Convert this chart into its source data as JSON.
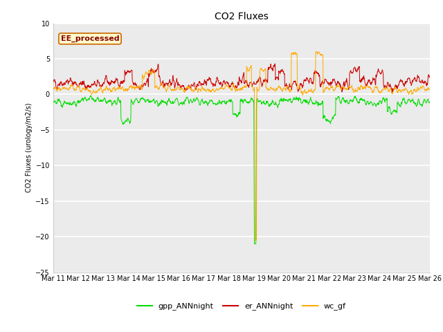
{
  "title": "CO2 Fluxes",
  "ylabel": "CO2 Fluxes (urology/m2/s)",
  "ylim": [
    -25,
    10
  ],
  "yticks": [
    10,
    5,
    0,
    -5,
    -10,
    -15,
    -20,
    -25
  ],
  "background_color": "#ffffff",
  "plot_bg_color": "#ebebeb",
  "grid_color": "#ffffff",
  "annotation_text": "EE_processed",
  "annotation_bg": "#ffffcc",
  "annotation_border": "#cc6600",
  "annotation_text_color": "#880000",
  "colors": {
    "gpp_ANNnight": "#00dd00",
    "er_ANNnight": "#cc0000",
    "wc_gf": "#ffaa00"
  },
  "legend_labels": [
    "gpp_ANNnight",
    "er_ANNnight",
    "wc_gf"
  ],
  "xtick_labels": [
    "Mar 11",
    "Mar 12",
    "Mar 13",
    "Mar 14",
    "Mar 15",
    "Mar 16",
    "Mar 17",
    "Mar 18",
    "Mar 19",
    "Mar 20",
    "Mar 21",
    "Mar 22",
    "Mar 23",
    "Mar 24",
    "Mar 25",
    "Mar 26"
  ],
  "title_fontsize": 10,
  "ylabel_fontsize": 7,
  "tick_fontsize": 7,
  "legend_fontsize": 8,
  "annotation_fontsize": 8
}
